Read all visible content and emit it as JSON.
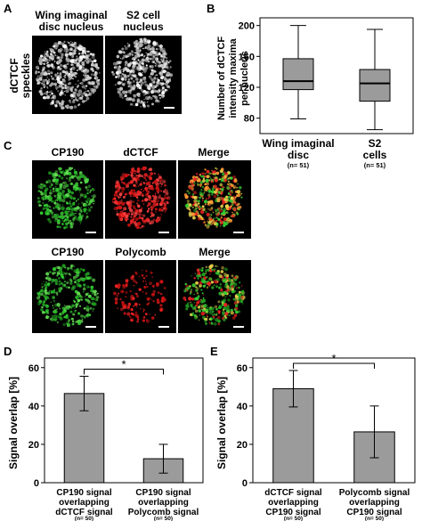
{
  "panels": {
    "A": {
      "letter": "A",
      "col1": "Wing imaginal disc nucleus",
      "col1_l1": "Wing imaginal",
      "col1_l2": "disc nucleus",
      "col2_l1": "S2 cell",
      "col2_l2": "nucleus",
      "row_label": "dCTCF speckles",
      "row_l1": "dCTCF",
      "row_l2": "speckles"
    },
    "C": {
      "letter": "C",
      "row1": [
        "CP190",
        "dCTCF",
        "Merge"
      ],
      "row2": [
        "CP190",
        "Polycomb",
        "Merge"
      ]
    }
  },
  "colors": {
    "bar_fill": "#9b9b9b",
    "green": "#33cc33",
    "red": "#ee2222",
    "yellow": "#e6d34a"
  },
  "chart_data": [
    {
      "id": "B",
      "letter": "B",
      "type": "box",
      "ylabel_l1": "Number of dCTCF",
      "ylabel_l2": "intensity maxima",
      "ylabel_l3": "per nucleus",
      "ylim": [
        60,
        210
      ],
      "yticks": [
        80,
        120,
        160,
        200
      ],
      "categories": [
        {
          "l1": "Wing imaginal",
          "l2": "disc",
          "n": "(n= 51)"
        },
        {
          "l1": "S2",
          "l2": "cells",
          "n": "(n= 51)"
        }
      ],
      "boxes": [
        {
          "min": 79,
          "q1": 117,
          "median": 128,
          "q3": 157,
          "max": 200
        },
        {
          "min": 65,
          "q1": 102,
          "median": 125,
          "q3": 143,
          "max": 195
        }
      ]
    },
    {
      "id": "D",
      "letter": "D",
      "type": "bar",
      "ylabel": "Signal overlap [%]",
      "ylim": [
        0,
        65
      ],
      "yticks": [
        0,
        20,
        40,
        60
      ],
      "categories": [
        {
          "l1": "CP190 signal",
          "l2": "overlapping",
          "l3": "dCTCF signal",
          "n": "(n= 50)"
        },
        {
          "l1": "CP190 signal",
          "l2": "overlapping",
          "l3": "Polycomb signal",
          "n": "(n= 50)"
        }
      ],
      "values": [
        46.5,
        12.5
      ],
      "errors": [
        9,
        7.5
      ],
      "significance": "*"
    },
    {
      "id": "E",
      "letter": "E",
      "type": "bar",
      "ylabel": "Signal overlap [%]",
      "ylim": [
        0,
        65
      ],
      "yticks": [
        0,
        20,
        40,
        60
      ],
      "categories": [
        {
          "l1": "dCTCF signal",
          "l2": "overlapping",
          "l3": "CP190 signal",
          "n": "(n= 50)"
        },
        {
          "l1": "Polycomb signal",
          "l2": "overlapping",
          "l3": "CP190 signal",
          "n": "(n= 50)"
        }
      ],
      "values": [
        49,
        26.5
      ],
      "errors": [
        9.5,
        13.5
      ],
      "significance": "*"
    }
  ]
}
